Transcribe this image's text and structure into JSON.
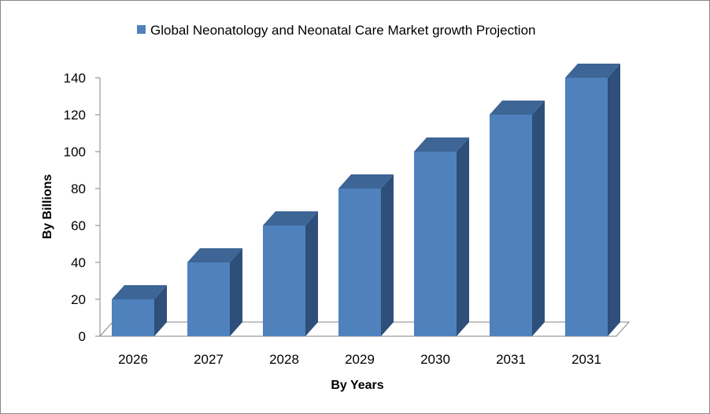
{
  "chart_data": {
    "type": "bar",
    "style": "3d-column",
    "categories": [
      "2026",
      "2027",
      "2028",
      "2029",
      "2030",
      "2031",
      "2031"
    ],
    "series": [
      {
        "name": "Global Neonatology and Neonatal Care Market growth Projection",
        "values": [
          20,
          40,
          60,
          80,
          100,
          120,
          140
        ]
      }
    ],
    "xlabel": "By Years",
    "ylabel": "By Billions",
    "ylim": [
      0,
      140
    ],
    "yticks": [
      0,
      20,
      40,
      60,
      80,
      100,
      120,
      140
    ],
    "grid": false,
    "legend_position": "top",
    "colors": {
      "bar_front": "#4f81bd",
      "bar_side": "#2e4f7a",
      "bar_top": "#3d6596",
      "axis": "#868686"
    }
  }
}
